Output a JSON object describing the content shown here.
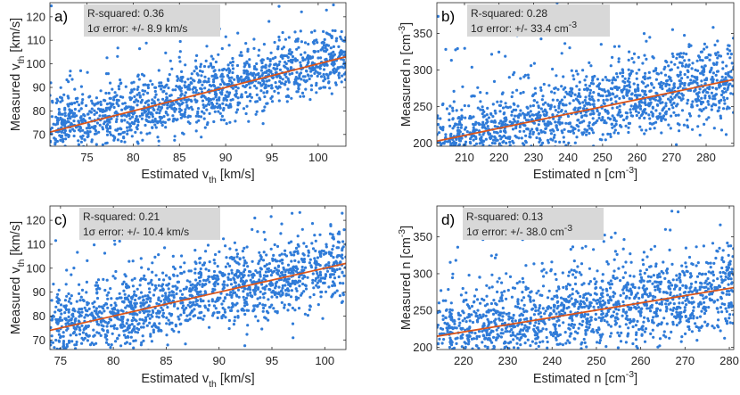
{
  "colors": {
    "points": "#2f7bd8",
    "fit": "#d95319",
    "box": "#d8d8d8"
  },
  "chart_data": [
    {
      "type": "scatter",
      "panel_label": "a)",
      "stats": {
        "r2_label": "R-squared: 0.36",
        "error_label": "1σ error: +/- 8.9 km/s"
      },
      "xlabel": "Estimated v",
      "xlabel_sub": "th",
      "xlabel_unit": " [km/s]",
      "ylabel": "Measured v",
      "ylabel_sub": "th",
      "ylabel_unit": " [km/s]",
      "xlim": [
        71,
        103
      ],
      "ylim": [
        65,
        126
      ],
      "xticks": [
        75,
        80,
        85,
        90,
        95,
        100
      ],
      "yticks": [
        70,
        80,
        90,
        100,
        110,
        120
      ],
      "fit_line": {
        "x": [
          71,
          103
        ],
        "y": [
          71,
          103
        ]
      },
      "cloud": {
        "x_range": [
          71,
          103
        ],
        "mean_y_at_x": [
          71,
          103
        ],
        "sigma": 8.9,
        "n_points": 1500,
        "seed": 11
      },
      "grid": false
    },
    {
      "type": "scatter",
      "panel_label": "b)",
      "stats": {
        "r2_label": "R-squared: 0.28",
        "error_label": "1σ error: +/- 33.4 cm"
      },
      "xlabel": "Estimated n [cm",
      "xlabel_sup": "-3",
      "xlabel_unit": "]",
      "ylabel": "Measured n [cm",
      "ylabel_sup": "-3",
      "ylabel_unit": "]",
      "error_sup": "-3",
      "xlim": [
        202,
        288
      ],
      "ylim": [
        196,
        392
      ],
      "xticks": [
        210,
        220,
        230,
        240,
        250,
        260,
        270,
        280
      ],
      "yticks": [
        200,
        250,
        300,
        350
      ],
      "fit_line": {
        "x": [
          202,
          288
        ],
        "y": [
          203,
          287
        ]
      },
      "cloud": {
        "x_range": [
          202,
          288
        ],
        "mean_y_at_x": [
          203,
          287
        ],
        "sigma": 33.4,
        "n_points": 1500,
        "seed": 23
      },
      "grid": false
    },
    {
      "type": "scatter",
      "panel_label": "c)",
      "stats": {
        "r2_label": "R-squared: 0.21",
        "error_label": "1σ error: +/- 10.4 km/s"
      },
      "xlabel": "Estimated v",
      "xlabel_sub": "th",
      "xlabel_unit": " [km/s]",
      "ylabel": "Measured v",
      "ylabel_sub": "th",
      "ylabel_unit": " [km/s]",
      "xlim": [
        74,
        102
      ],
      "ylim": [
        66,
        126
      ],
      "xticks": [
        75,
        80,
        85,
        90,
        95,
        100
      ],
      "yticks": [
        70,
        80,
        90,
        100,
        110,
        120
      ],
      "fit_line": {
        "x": [
          74,
          102
        ],
        "y": [
          74,
          102
        ]
      },
      "cloud": {
        "x_range": [
          74,
          102
        ],
        "mean_y_at_x": [
          74,
          102
        ],
        "sigma": 10.4,
        "n_points": 1500,
        "seed": 37
      },
      "grid": false
    },
    {
      "type": "scatter",
      "panel_label": "d)",
      "stats": {
        "r2_label": "R-squared: 0.13",
        "error_label": "1σ error: +/- 38.0 cm"
      },
      "xlabel": "Estimated n [cm",
      "xlabel_sup": "-3",
      "xlabel_unit": "]",
      "ylabel": "Measured n [cm",
      "ylabel_sup": "-3",
      "ylabel_unit": "]",
      "error_sup": "-3",
      "xlim": [
        214,
        281
      ],
      "ylim": [
        197,
        392
      ],
      "xticks": [
        220,
        230,
        240,
        250,
        260,
        270,
        280
      ],
      "yticks": [
        200,
        250,
        300,
        350
      ],
      "fit_line": {
        "x": [
          214,
          281
        ],
        "y": [
          215,
          281
        ]
      },
      "cloud": {
        "x_range": [
          214,
          281
        ],
        "mean_y_at_x": [
          215,
          281
        ],
        "sigma": 38.0,
        "n_points": 1500,
        "seed": 53
      },
      "grid": false
    }
  ]
}
